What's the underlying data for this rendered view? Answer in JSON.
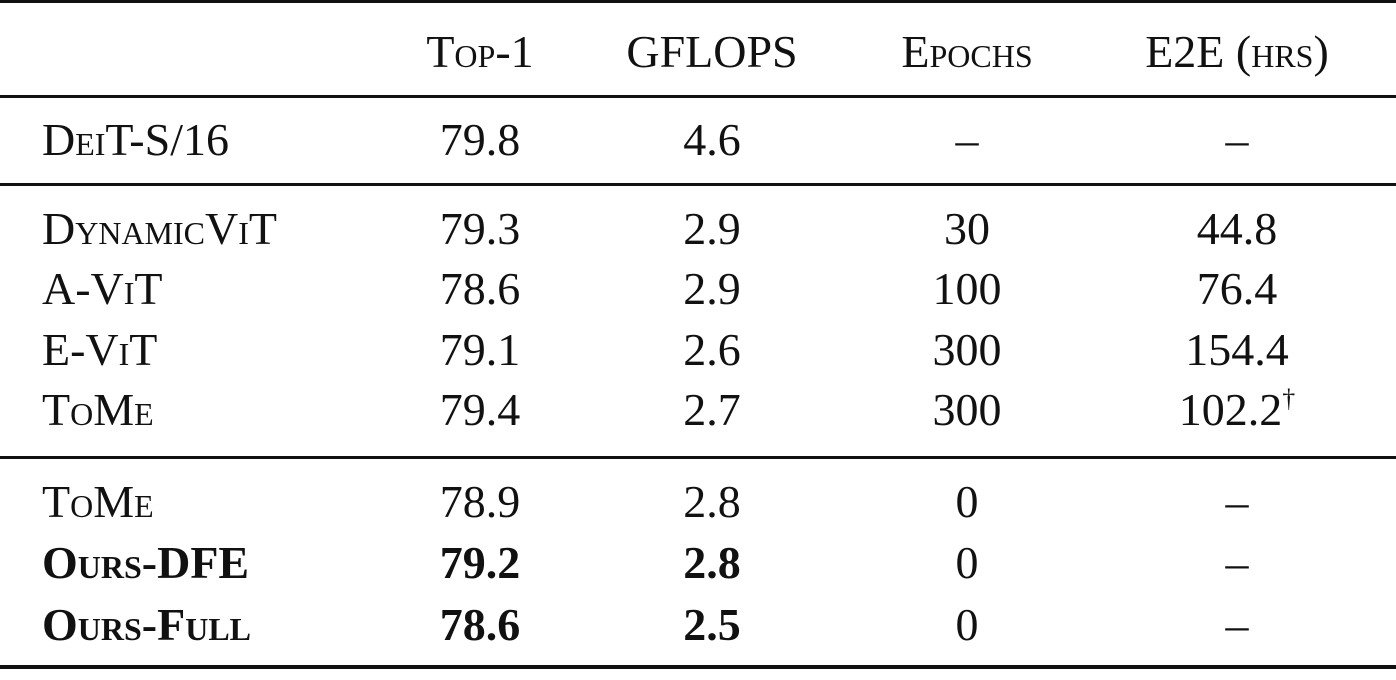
{
  "table": {
    "header": [
      "Top-1",
      "GFLOPS",
      "Epochs",
      "E2E (hrs)"
    ],
    "rows": [
      {
        "cells": [
          "DeiT-S/16",
          "79.8",
          "4.6",
          "–",
          "–"
        ]
      },
      {
        "cells": [
          "DynamicViT",
          "79.3",
          "2.9",
          "30",
          "44.8"
        ]
      },
      {
        "cells": [
          "A-ViT",
          "78.6",
          "2.9",
          "100",
          "76.4"
        ]
      },
      {
        "cells": [
          "E-ViT",
          "79.1",
          "2.6",
          "300",
          "154.4"
        ]
      },
      {
        "cells": [
          "ToMe",
          "79.4",
          "2.7",
          "300",
          {
            "text": "102.2",
            "mark": "†"
          }
        ]
      },
      {
        "cells": [
          "ToMe",
          "78.9",
          "2.8",
          "0",
          "–"
        ]
      },
      {
        "cells": [
          "Ours-DFE",
          "79.2",
          "2.8",
          "0",
          "–"
        ],
        "bold": [
          0,
          1,
          2
        ]
      },
      {
        "cells": [
          "Ours-Full",
          "78.6",
          "2.5",
          "0",
          "–"
        ],
        "bold": [
          0,
          1,
          2
        ]
      }
    ]
  }
}
